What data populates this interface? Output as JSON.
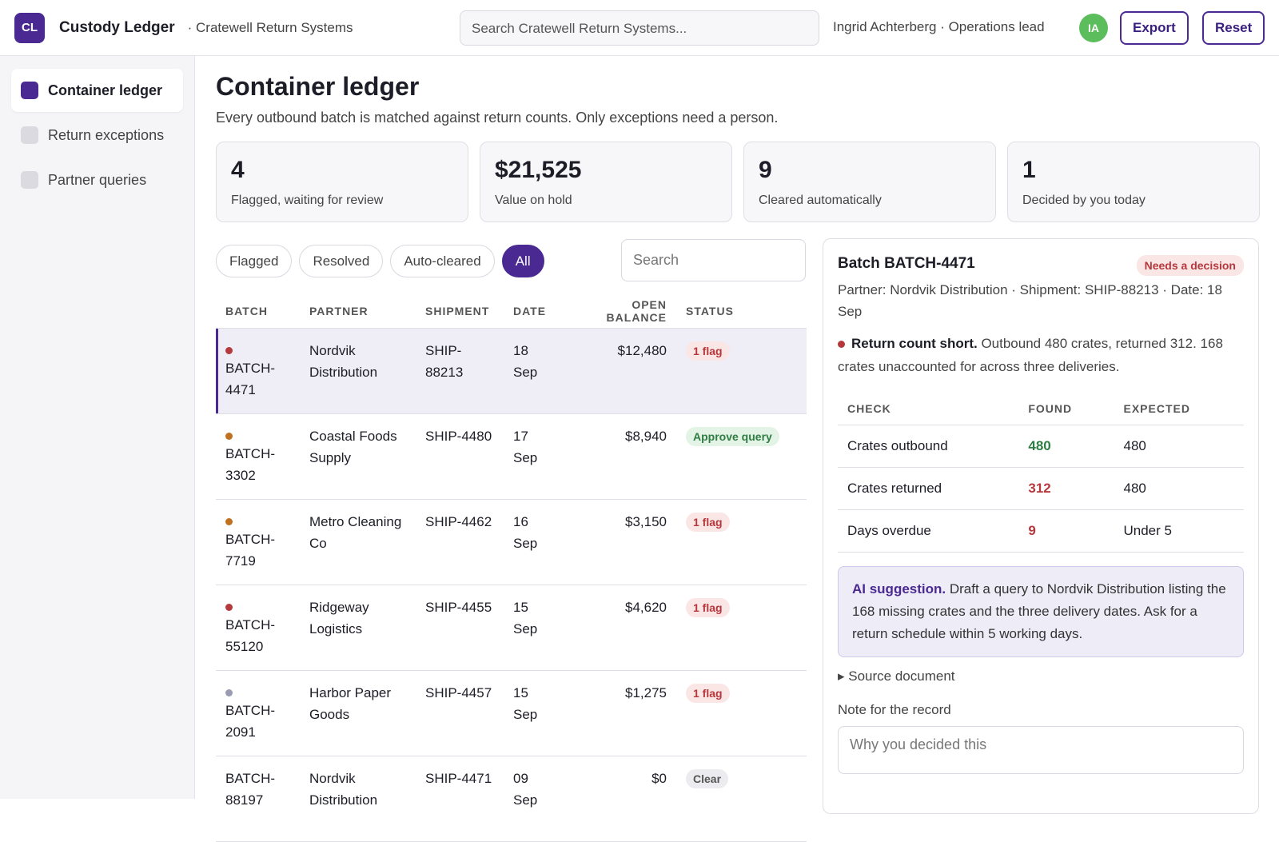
{
  "header": {
    "logo": "CL",
    "title": "Custody Ledger",
    "org": "· Cratewell Return Systems",
    "search_placeholder": "Search Cratewell Return Systems...",
    "user": "Ingrid Achterberg · Operations lead",
    "avatar": "IA",
    "actions": [
      "Export",
      "Reset"
    ]
  },
  "sidebar": {
    "active": 0,
    "items": [
      "Container ledger",
      "Return exceptions",
      "Partner queries"
    ]
  },
  "page": {
    "title": "Container ledger",
    "subtitle": "Every outbound batch is matched against return counts. Only exceptions need a person."
  },
  "stats": [
    {
      "value": "4",
      "label": "Flagged, waiting for review"
    },
    {
      "value": "$21,525",
      "label": "Value on hold"
    },
    {
      "value": "9",
      "label": "Cleared automatically"
    },
    {
      "value": "1",
      "label": "Decided by you today"
    }
  ],
  "filters": {
    "chips": [
      "Flagged",
      "Resolved",
      "Auto-cleared",
      "All"
    ],
    "active": 3,
    "search_placeholder": "Search"
  },
  "table": {
    "columns": [
      "BATCH",
      "PARTNER",
      "SHIPMENT",
      "DATE",
      "OPEN BALANCE",
      "STATUS"
    ],
    "selected": 0,
    "rows": [
      {
        "cells": [
          "BATCH-4471",
          "Nordvik Distribution",
          "SHIP-88213",
          "18 Sep",
          "$12,480"
        ],
        "status": "1 flag",
        "status_kind": "flag",
        "dot": "#b5383d"
      },
      {
        "cells": [
          "BATCH-3302",
          "Coastal Foods Supply",
          "SHIP-4480",
          "17 Sep",
          "$8,940"
        ],
        "status": "Approve query",
        "status_kind": "approve",
        "dot": "#c0711f"
      },
      {
        "cells": [
          "BATCH-7719",
          "Metro Cleaning Co",
          "SHIP-4462",
          "16 Sep",
          "$3,150"
        ],
        "status": "1 flag",
        "status_kind": "flag",
        "dot": "#c0711f"
      },
      {
        "cells": [
          "BATCH-55120",
          "Ridgeway Logistics",
          "SHIP-4455",
          "15 Sep",
          "$4,620"
        ],
        "status": "1 flag",
        "status_kind": "flag",
        "dot": "#b5383d"
      },
      {
        "cells": [
          "BATCH-2091",
          "Harbor Paper Goods",
          "SHIP-4457",
          "15 Sep",
          "$1,275"
        ],
        "status": "1 flag",
        "status_kind": "flag",
        "dot": "#9a9cb3"
      },
      {
        "cells": [
          "BATCH-88197",
          "Nordvik Distribution",
          "SHIP-4471",
          "09 Sep",
          "$0"
        ],
        "status": "Clear",
        "status_kind": "clear",
        "dot": null
      }
    ]
  },
  "detail": {
    "title": "Batch BATCH-4471",
    "badge": "Needs a decision",
    "meta": "Partner: Nordvik Distribution · Shipment: SHIP-88213 · Date: 18 Sep",
    "alert_title": "Return count short.",
    "alert_text": "Outbound 480 crates, returned 312. 168 crates unaccounted for across three deliveries.",
    "check_columns": [
      "CHECK",
      "FOUND",
      "EXPECTED"
    ],
    "checks": [
      {
        "cells": [
          "Crates outbound",
          "480",
          "480"
        ],
        "found_kind": "ok"
      },
      {
        "cells": [
          "Crates returned",
          "312",
          "480"
        ],
        "found_kind": "bad"
      },
      {
        "cells": [
          "Days overdue",
          "9",
          "Under 5"
        ],
        "found_kind": "bad"
      }
    ],
    "ai_label": "AI suggestion.",
    "ai_text": "Draft a query to Nordvik Distribution listing the 168 missing crates and the three delivery dates. Ask for a return schedule within 5 working days.",
    "source": "Source document",
    "note_label": "Note for the record",
    "note_placeholder": "Why you decided this"
  }
}
